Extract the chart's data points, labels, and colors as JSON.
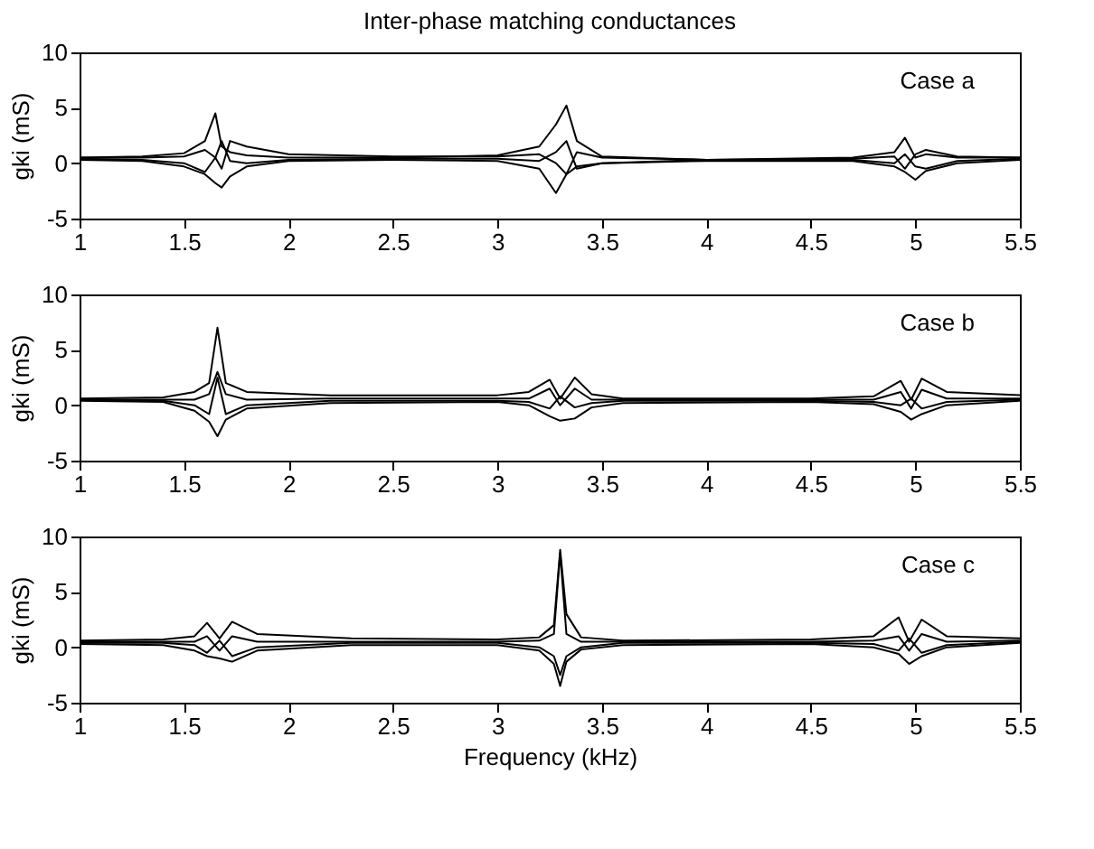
{
  "chart_data": [
    {
      "type": "line",
      "title": "Inter-phase matching conductances",
      "ylabel": "gki (mS)",
      "annotations": [
        "Case a"
      ],
      "xlim": [
        1,
        5.5
      ],
      "xticks": [
        1,
        1.5,
        2,
        2.5,
        3,
        3.5,
        4,
        4.5,
        5,
        5.5
      ],
      "ylim": [
        -5,
        10
      ],
      "yticks": [
        -5,
        0,
        5,
        10
      ],
      "grid": false,
      "legend": false,
      "x": [
        1,
        1.3,
        1.5,
        1.6,
        1.65,
        1.68,
        1.72,
        1.8,
        2.0,
        2.5,
        3.0,
        3.2,
        3.28,
        3.33,
        3.38,
        3.5,
        4.0,
        4.7,
        4.9,
        4.95,
        5.0,
        5.05,
        5.2,
        5.5
      ],
      "series": [
        {
          "color": "#000000",
          "values": [
            0.5,
            0.6,
            0.9,
            2.0,
            4.5,
            1.5,
            1.0,
            0.7,
            0.5,
            0.5,
            0.7,
            1.5,
            3.5,
            5.2,
            2.0,
            0.6,
            0.3,
            0.5,
            1.0,
            2.3,
            0.5,
            0.8,
            0.5,
            0.5
          ]
        },
        {
          "color": "#000000",
          "values": [
            0.3,
            0.2,
            -0.3,
            -1.0,
            -1.8,
            -2.2,
            -1.2,
            -0.3,
            0.2,
            0.3,
            0.2,
            -0.5,
            -2.7,
            -1.0,
            -0.3,
            0.0,
            0.2,
            0.2,
            -0.3,
            -0.8,
            -1.5,
            -0.7,
            0.0,
            0.3
          ]
        },
        {
          "color": "#000000",
          "values": [
            0.5,
            0.5,
            0.6,
            1.2,
            0.5,
            -0.5,
            2.0,
            1.5,
            0.8,
            0.6,
            0.6,
            0.8,
            0.0,
            -1.0,
            1.0,
            0.5,
            0.3,
            0.4,
            0.6,
            -0.5,
            0.8,
            1.2,
            0.6,
            0.5
          ]
        },
        {
          "color": "#000000",
          "values": [
            0.4,
            0.3,
            0.0,
            -0.8,
            0.5,
            2.0,
            0.2,
            0.0,
            0.3,
            0.4,
            0.4,
            0.2,
            1.0,
            2.0,
            -0.5,
            0.0,
            0.3,
            0.3,
            0.0,
            0.8,
            -0.3,
            -0.5,
            0.2,
            0.4
          ]
        }
      ]
    },
    {
      "type": "line",
      "ylabel": "gki (mS)",
      "annotations": [
        "Case b"
      ],
      "xlim": [
        1,
        5.5
      ],
      "xticks": [
        1,
        1.5,
        2,
        2.5,
        3,
        3.5,
        4,
        4.5,
        5,
        5.5
      ],
      "ylim": [
        -5,
        10
      ],
      "yticks": [
        -5,
        0,
        5,
        10
      ],
      "grid": false,
      "legend": false,
      "x": [
        1,
        1.4,
        1.55,
        1.62,
        1.66,
        1.7,
        1.8,
        2.2,
        3.0,
        3.15,
        3.25,
        3.3,
        3.37,
        3.45,
        3.6,
        4.5,
        4.8,
        4.93,
        4.98,
        5.03,
        5.15,
        5.5
      ],
      "series": [
        {
          "color": "#000000",
          "values": [
            0.6,
            0.7,
            1.2,
            2.0,
            7.0,
            2.0,
            1.2,
            0.9,
            0.9,
            1.2,
            2.3,
            0.6,
            2.5,
            1.0,
            0.6,
            0.6,
            0.8,
            2.2,
            0.5,
            2.4,
            1.2,
            0.9
          ]
        },
        {
          "color": "#000000",
          "values": [
            0.4,
            0.3,
            -0.5,
            -1.5,
            -2.8,
            -1.3,
            -0.3,
            0.2,
            0.3,
            0.0,
            -1.0,
            -1.4,
            -1.2,
            -0.2,
            0.2,
            0.3,
            0.1,
            -0.6,
            -1.3,
            -0.8,
            0.0,
            0.4
          ]
        },
        {
          "color": "#000000",
          "values": [
            0.5,
            0.5,
            0.5,
            1.0,
            3.0,
            1.0,
            0.5,
            0.6,
            0.6,
            0.6,
            1.5,
            0.0,
            1.5,
            0.5,
            0.5,
            0.5,
            0.5,
            1.2,
            -0.3,
            1.4,
            0.6,
            0.6
          ]
        },
        {
          "color": "#000000",
          "values": [
            0.5,
            0.4,
            0.0,
            -0.8,
            2.5,
            -0.8,
            0.0,
            0.4,
            0.4,
            0.3,
            -0.3,
            0.8,
            -0.2,
            0.2,
            0.4,
            0.4,
            0.3,
            0.0,
            0.6,
            -0.3,
            0.3,
            0.5
          ]
        }
      ]
    },
    {
      "type": "line",
      "ylabel": "gki (mS)",
      "xlabel": "Frequency (kHz)",
      "annotations": [
        "Case c"
      ],
      "xlim": [
        1,
        5.5
      ],
      "xticks": [
        1,
        1.5,
        2,
        2.5,
        3,
        3.5,
        4,
        4.5,
        5,
        5.5
      ],
      "ylim": [
        -5,
        10
      ],
      "yticks": [
        -5,
        0,
        5,
        10
      ],
      "grid": false,
      "legend": false,
      "x": [
        1,
        1.4,
        1.55,
        1.61,
        1.67,
        1.73,
        1.85,
        2.3,
        3.0,
        3.2,
        3.27,
        3.3,
        3.33,
        3.4,
        3.6,
        4.5,
        4.8,
        4.92,
        4.97,
        5.03,
        5.15,
        5.5
      ],
      "series": [
        {
          "color": "#000000",
          "values": [
            0.6,
            0.7,
            1.0,
            2.2,
            0.8,
            2.3,
            1.2,
            0.8,
            0.7,
            0.9,
            2.0,
            8.8,
            3.0,
            0.9,
            0.6,
            0.7,
            1.0,
            2.7,
            0.5,
            2.5,
            1.0,
            0.8
          ]
        },
        {
          "color": "#000000",
          "values": [
            0.3,
            0.2,
            -0.3,
            -0.8,
            -1.0,
            -1.3,
            -0.3,
            0.2,
            0.2,
            -0.3,
            -1.5,
            -3.5,
            -1.3,
            -0.2,
            0.2,
            0.3,
            0.0,
            -0.6,
            -1.5,
            -0.8,
            0.0,
            0.4
          ]
        },
        {
          "color": "#000000",
          "values": [
            0.5,
            0.5,
            0.5,
            1.0,
            -0.3,
            1.0,
            0.5,
            0.5,
            0.5,
            0.6,
            1.2,
            8.5,
            1.2,
            0.5,
            0.5,
            0.5,
            0.6,
            1.0,
            -0.3,
            1.2,
            0.5,
            0.6
          ]
        },
        {
          "color": "#000000",
          "values": [
            0.4,
            0.4,
            0.2,
            -0.5,
            0.6,
            -0.8,
            0.0,
            0.4,
            0.4,
            0.0,
            -0.8,
            -2.5,
            -0.8,
            0.0,
            0.4,
            0.4,
            0.3,
            -0.3,
            0.8,
            -0.5,
            0.2,
            0.5
          ]
        }
      ]
    }
  ]
}
